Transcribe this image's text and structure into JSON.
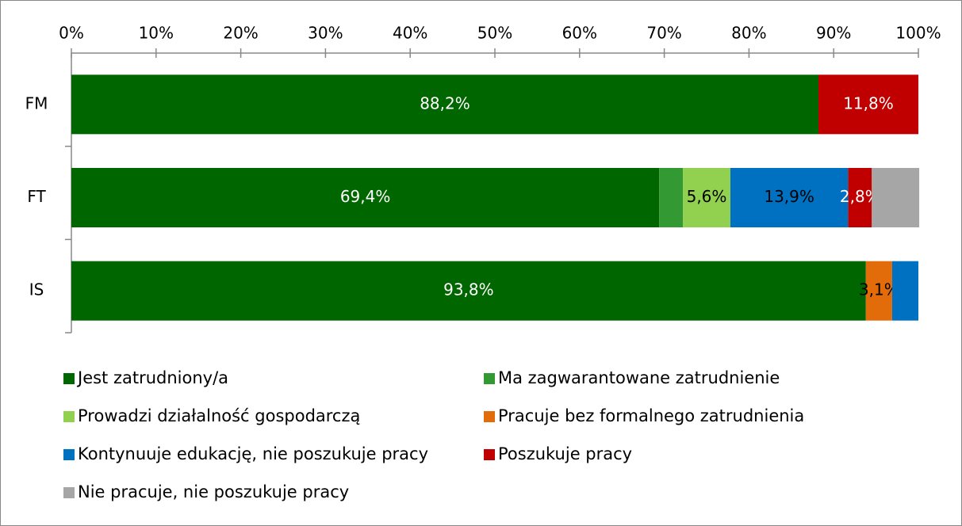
{
  "chart_data": {
    "type": "stacked-bar-horizontal",
    "categories": [
      "FM",
      "FT",
      "IS"
    ],
    "series": [
      {
        "name": "Jest zatrudniony/a",
        "color": "#006600",
        "values": [
          88.2,
          69.4,
          93.8
        ],
        "value_labels": [
          "88,2%",
          "69,4%",
          "93,8%"
        ]
      },
      {
        "name": "Ma zagwarantowane zatrudnienie",
        "color": "#339933",
        "values": [
          0,
          2.8,
          0
        ]
      },
      {
        "name": "Prowadzi działalność gospodarczą",
        "color": "#92d050",
        "values": [
          0,
          5.6,
          0
        ],
        "value_labels": [
          null,
          "5,6%",
          null
        ]
      },
      {
        "name": "Pracuje bez formalnego zatrudnienia",
        "color": "#e36c0a",
        "values": [
          0,
          0,
          3.1
        ],
        "value_labels": [
          null,
          null,
          "3,1%"
        ]
      },
      {
        "name": "Kontynuuje edukację, nie poszukuje pracy",
        "color": "#0070c0",
        "values": [
          0,
          13.9,
          3.1
        ],
        "value_labels": [
          null,
          "13,9%",
          null
        ]
      },
      {
        "name": "Poszukuje pracy",
        "color": "#c00000",
        "values": [
          11.8,
          2.8,
          0
        ],
        "value_labels": [
          "11,8%",
          "2,8%",
          null
        ]
      },
      {
        "name": "Nie pracuje, nie poszukuje pracy",
        "color": "#a6a6a6",
        "values": [
          0,
          5.6,
          0
        ]
      }
    ],
    "xlim": [
      0,
      100
    ],
    "xticks": [
      {
        "value": 0,
        "label": "0%"
      },
      {
        "value": 10,
        "label": "10%"
      },
      {
        "value": 20,
        "label": "20%"
      },
      {
        "value": 30,
        "label": "30%"
      },
      {
        "value": 40,
        "label": "40%"
      },
      {
        "value": 50,
        "label": "50%"
      },
      {
        "value": 60,
        "label": "60%"
      },
      {
        "value": 70,
        "label": "70%"
      },
      {
        "value": 80,
        "label": "80%"
      },
      {
        "value": 90,
        "label": "90%"
      },
      {
        "value": 100,
        "label": "100%"
      }
    ],
    "legend": "bottom"
  }
}
